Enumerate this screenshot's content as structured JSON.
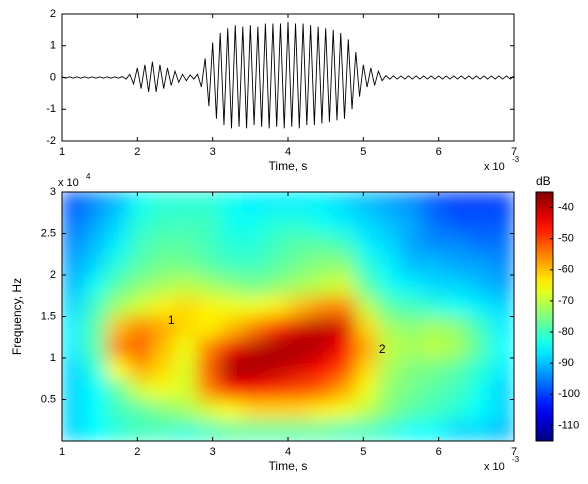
{
  "chart_data": [
    {
      "type": "line",
      "x_label": "Time, s",
      "x_exponent_base": "x 10",
      "x_exponent": "-3",
      "xlim": [
        1,
        7
      ],
      "xticks": [
        1,
        2,
        3,
        4,
        5,
        6,
        7
      ],
      "ylim": [
        -2,
        2
      ],
      "yticks": [
        -2,
        -1,
        0,
        1,
        2
      ],
      "color": "#000000",
      "x": [
        1.0,
        1.05,
        1.1,
        1.15,
        1.2,
        1.25,
        1.3,
        1.35,
        1.4,
        1.45,
        1.5,
        1.55,
        1.6,
        1.65,
        1.7,
        1.75,
        1.8,
        1.85,
        1.9,
        1.95,
        2.0,
        2.05,
        2.1,
        2.15,
        2.2,
        2.25,
        2.3,
        2.35,
        2.4,
        2.45,
        2.5,
        2.55,
        2.6,
        2.65,
        2.7,
        2.75,
        2.8,
        2.85,
        2.9,
        2.95,
        3.0,
        3.05,
        3.1,
        3.15,
        3.2,
        3.25,
        3.3,
        3.35,
        3.4,
        3.45,
        3.5,
        3.55,
        3.6,
        3.65,
        3.7,
        3.75,
        3.8,
        3.85,
        3.9,
        3.95,
        4.0,
        4.05,
        4.1,
        4.15,
        4.2,
        4.25,
        4.3,
        4.35,
        4.4,
        4.45,
        4.5,
        4.55,
        4.6,
        4.65,
        4.7,
        4.75,
        4.8,
        4.85,
        4.9,
        4.95,
        5.0,
        5.05,
        5.1,
        5.15,
        5.2,
        5.25,
        5.3,
        5.35,
        5.4,
        5.45,
        5.5,
        5.55,
        5.6,
        5.65,
        5.7,
        5.75,
        5.8,
        5.85,
        5.9,
        5.95,
        6.0,
        6.05,
        6.1,
        6.15,
        6.2,
        6.25,
        6.3,
        6.35,
        6.4,
        6.45,
        6.5,
        6.55,
        6.6,
        6.65,
        6.7,
        6.75,
        6.8,
        6.85,
        6.9,
        6.95,
        7.0
      ],
      "values": [
        0.02,
        -0.02,
        0.02,
        -0.02,
        0.02,
        -0.02,
        0.02,
        -0.02,
        0.02,
        -0.02,
        0.02,
        -0.02,
        0.02,
        -0.02,
        0.02,
        -0.02,
        0.03,
        -0.05,
        0.1,
        -0.2,
        0.3,
        -0.35,
        0.4,
        -0.45,
        0.5,
        -0.45,
        0.4,
        -0.35,
        0.3,
        -0.25,
        0.2,
        -0.15,
        0.1,
        -0.1,
        0.08,
        -0.05,
        0.1,
        -0.3,
        0.6,
        -0.9,
        1.1,
        -1.3,
        1.4,
        -1.5,
        1.55,
        -1.6,
        1.65,
        -1.55,
        1.6,
        -1.6,
        1.65,
        -1.5,
        1.6,
        -1.55,
        1.7,
        -1.6,
        1.7,
        -1.55,
        1.7,
        -1.6,
        1.75,
        -1.55,
        1.7,
        -1.6,
        1.7,
        -1.5,
        1.65,
        -1.5,
        1.6,
        -1.45,
        1.55,
        -1.4,
        1.5,
        -1.35,
        1.4,
        -1.3,
        1.2,
        -1.0,
        0.8,
        -0.6,
        0.4,
        -0.3,
        0.3,
        -0.25,
        0.2,
        -0.1,
        0.06,
        -0.05,
        0.05,
        -0.05,
        0.05,
        -0.05,
        0.05,
        -0.05,
        0.05,
        -0.05,
        0.05,
        -0.05,
        0.05,
        -0.05,
        0.05,
        -0.05,
        0.05,
        -0.05,
        0.05,
        -0.05,
        0.05,
        -0.05,
        0.05,
        -0.05,
        0.05,
        -0.05,
        0.05,
        -0.05,
        0.05,
        -0.05,
        0.05,
        -0.05,
        0.05,
        -0.05,
        0.05
      ]
    },
    {
      "type": "heatmap",
      "x_label": "Time, s",
      "y_label": "Frequency, Hz",
      "x_exponent_base": "x 10",
      "x_exponent": "-3",
      "y_exponent_base": "x 10",
      "y_exponent": "4",
      "xlim": [
        1,
        7
      ],
      "xticks": [
        1,
        2,
        3,
        4,
        5,
        6,
        7
      ],
      "ylim": [
        0,
        30000
      ],
      "yticks": [
        {
          "value": 5000,
          "label": "0.5"
        },
        {
          "value": 10000,
          "label": "1"
        },
        {
          "value": 15000,
          "label": "1.5"
        },
        {
          "value": 20000,
          "label": "2"
        },
        {
          "value": 25000,
          "label": "2.5"
        },
        {
          "value": 30000,
          "label": "3"
        }
      ],
      "x": [
        1.15,
        1.45,
        1.75,
        2.05,
        2.35,
        2.65,
        2.95,
        3.25,
        3.55,
        3.85,
        4.15,
        4.45,
        4.75,
        5.05,
        5.35,
        5.65,
        5.95,
        6.25,
        6.55,
        6.85
      ],
      "y": [
        1250,
        3750,
        6250,
        8750,
        11250,
        13750,
        16250,
        18750,
        21250,
        23750,
        26250,
        28750
      ],
      "z": [
        [
          -88,
          -85,
          -82,
          -80,
          -80,
          -82,
          -80,
          -78,
          -78,
          -78,
          -78,
          -78,
          -80,
          -80,
          -82,
          -85,
          -85,
          -88,
          -88,
          -90
        ],
        [
          -88,
          -85,
          -80,
          -78,
          -75,
          -72,
          -68,
          -65,
          -62,
          -62,
          -62,
          -64,
          -66,
          -70,
          -75,
          -78,
          -80,
          -82,
          -85,
          -88
        ],
        [
          -88,
          -85,
          -78,
          -68,
          -66,
          -68,
          -55,
          -45,
          -45,
          -48,
          -50,
          -52,
          -58,
          -66,
          -74,
          -76,
          -78,
          -80,
          -84,
          -88
        ],
        [
          -88,
          -82,
          -65,
          -58,
          -62,
          -68,
          -52,
          -38,
          -38,
          -40,
          -42,
          -45,
          -50,
          -62,
          -72,
          -75,
          -76,
          -78,
          -82,
          -86
        ],
        [
          -86,
          -78,
          -55,
          -52,
          -60,
          -66,
          -55,
          -44,
          -40,
          -38,
          -38,
          -40,
          -45,
          -58,
          -70,
          -72,
          -70,
          -72,
          -78,
          -85
        ],
        [
          -86,
          -78,
          -60,
          -55,
          -58,
          -62,
          -64,
          -60,
          -55,
          -48,
          -42,
          -40,
          -42,
          -62,
          -72,
          -74,
          -72,
          -74,
          -80,
          -86
        ],
        [
          -88,
          -80,
          -72,
          -68,
          -64,
          -62,
          -64,
          -66,
          -66,
          -64,
          -60,
          -56,
          -55,
          -70,
          -78,
          -80,
          -82,
          -84,
          -86,
          -88
        ],
        [
          -90,
          -84,
          -78,
          -74,
          -72,
          -70,
          -72,
          -74,
          -76,
          -74,
          -72,
          -70,
          -68,
          -78,
          -84,
          -86,
          -88,
          -88,
          -90,
          -92
        ],
        [
          -92,
          -88,
          -82,
          -78,
          -76,
          -76,
          -78,
          -80,
          -80,
          -78,
          -76,
          -74,
          -74,
          -82,
          -86,
          -90,
          -90,
          -92,
          -92,
          -94
        ],
        [
          -94,
          -90,
          -86,
          -80,
          -78,
          -78,
          -80,
          -82,
          -82,
          -80,
          -78,
          -78,
          -80,
          -86,
          -88,
          -92,
          -94,
          -94,
          -96,
          -96
        ],
        [
          -96,
          -92,
          -88,
          -82,
          -80,
          -80,
          -80,
          -84,
          -84,
          -82,
          -82,
          -84,
          -86,
          -88,
          -90,
          -92,
          -96,
          -98,
          -98,
          -98
        ],
        [
          -98,
          -94,
          -90,
          -84,
          -82,
          -82,
          -82,
          -84,
          -86,
          -86,
          -86,
          -86,
          -88,
          -90,
          -92,
          -94,
          -98,
          -100,
          -100,
          -100
        ]
      ],
      "colorbar": {
        "title": "dB",
        "clim": [
          -115,
          -35
        ],
        "ticks": [
          -40,
          -50,
          -60,
          -70,
          -80,
          -90,
          -100,
          -110
        ]
      },
      "annotations": [
        {
          "text": "1",
          "x": 2.45,
          "y": 14500
        },
        {
          "text": "2",
          "x": 5.25,
          "y": 11000
        }
      ]
    }
  ]
}
